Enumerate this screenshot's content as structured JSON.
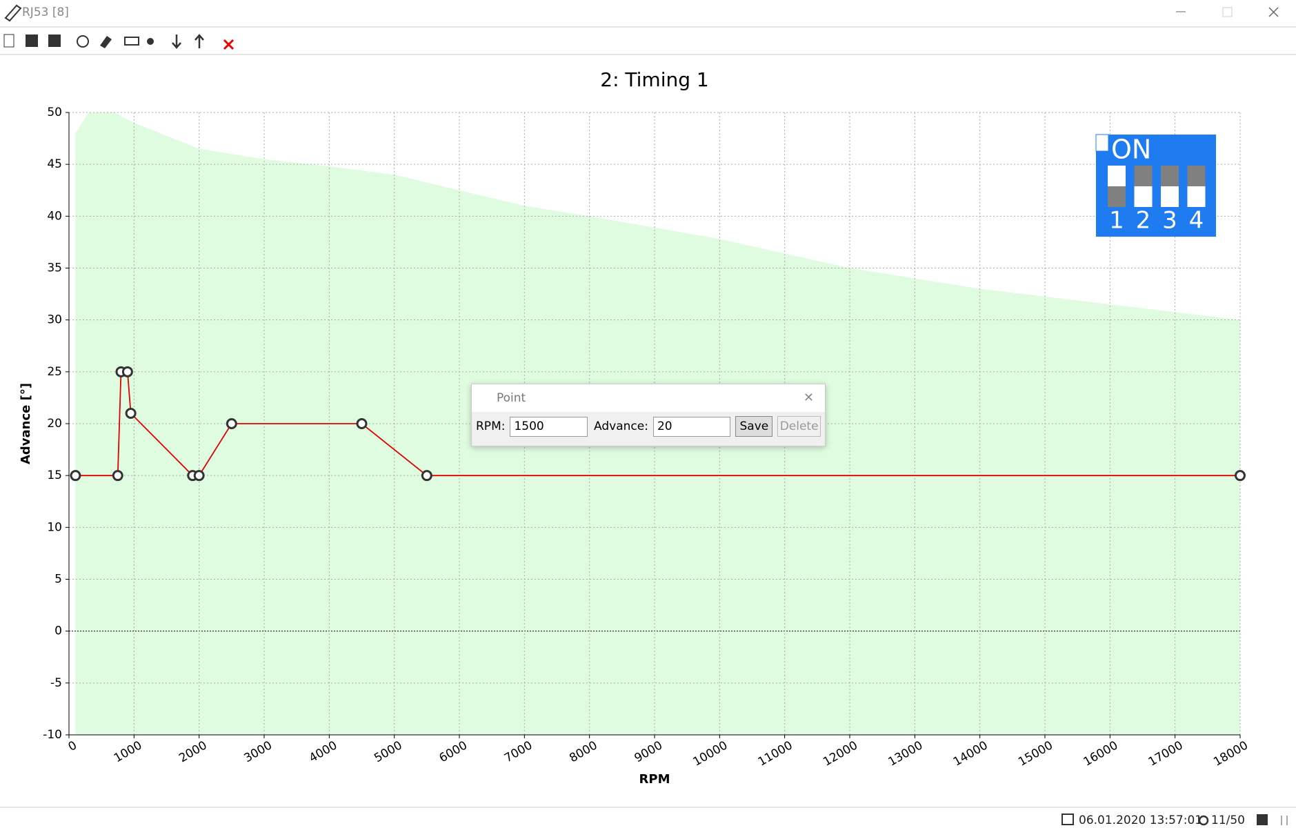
{
  "window": {
    "title": "RJ53 [8]"
  },
  "chart_data": {
    "type": "line",
    "title": "2: Timing 1",
    "x_label": "RPM",
    "y_label": "Advance [°]",
    "series": [
      {
        "name": null,
        "color": "#e00000",
        "x": [
          100,
          750,
          800,
          900,
          950,
          1900,
          2000,
          2500,
          4500,
          5500,
          18000
        ],
        "values": [
          15,
          15,
          25,
          25,
          21,
          15,
          15,
          20,
          20,
          15,
          15
        ]
      }
    ],
    "limit": {
      "color": "#e0fce0",
      "x": [
        100,
        300,
        700,
        1000,
        2000,
        3000,
        4000,
        5000,
        6000,
        7000,
        8000,
        10000,
        12000,
        14000,
        16000,
        18000
      ],
      "values": [
        48,
        50,
        50,
        49,
        46.5,
        45.5,
        44.8,
        44,
        42.5,
        41,
        40,
        37.8,
        35,
        33,
        31.5,
        30
      ]
    },
    "xlim": [
      0,
      18000
    ],
    "xticks": [
      0,
      1000,
      2000,
      3000,
      4000,
      5000,
      6000,
      7000,
      8000,
      9000,
      10000,
      11000,
      12000,
      13000,
      14000,
      15000,
      16000,
      17000,
      18000
    ],
    "ylim": [
      -10,
      50
    ],
    "yticks": [
      -10,
      -5,
      0,
      5,
      10,
      15,
      20,
      25,
      30,
      35,
      40,
      45,
      50
    ],
    "grid": true
  },
  "dip_switch": {
    "label": "ON",
    "switches": [
      {
        "label": "1",
        "on": true
      },
      {
        "label": "2",
        "on": false
      },
      {
        "label": "3",
        "on": false
      },
      {
        "label": "4",
        "on": false
      }
    ]
  },
  "dialog": {
    "title": "Point",
    "rpm_label": "RPM:",
    "rpm_value": "1500",
    "advance_label": "Advance:",
    "advance_value": "20",
    "save": "Save",
    "delete": "Delete"
  },
  "status": {
    "datetime": "06.01.2020 13:57:01",
    "count": "11/50"
  }
}
